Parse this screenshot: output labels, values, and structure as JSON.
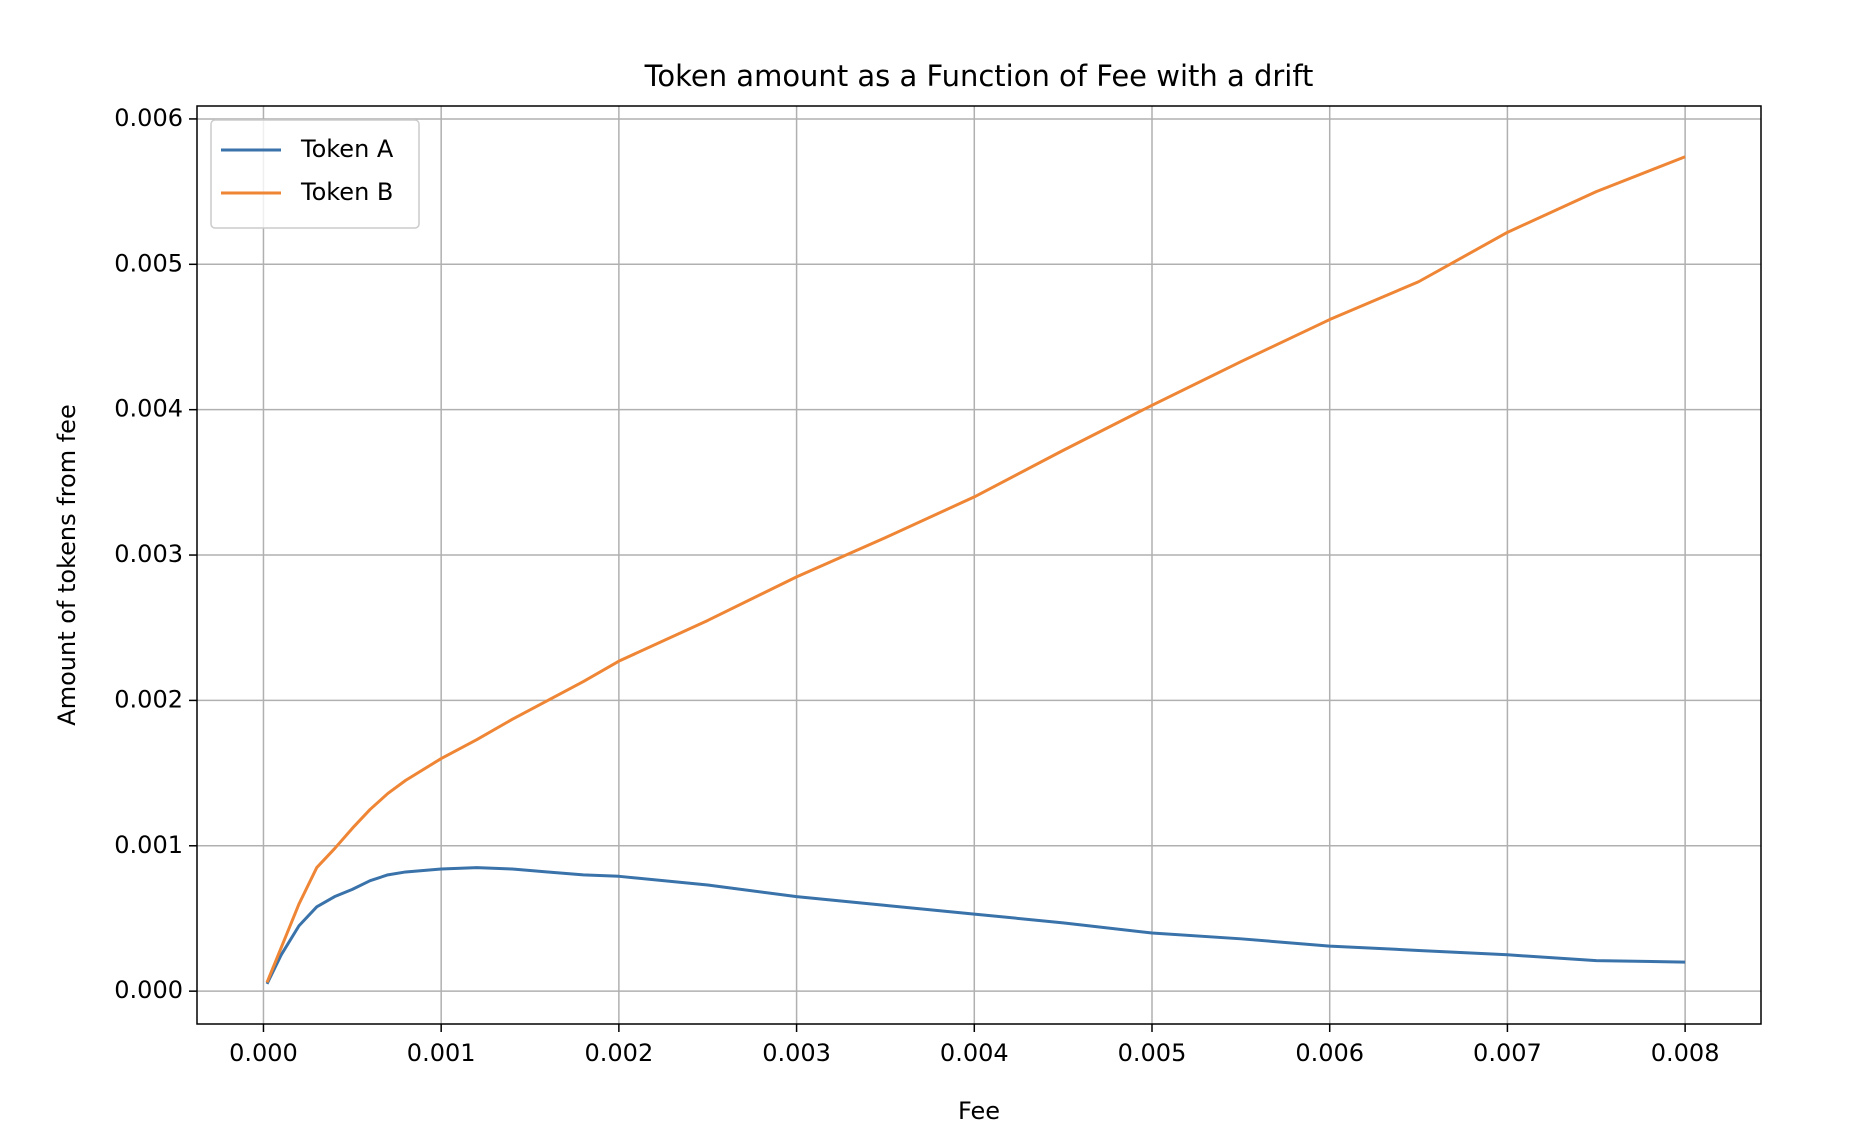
{
  "chart_data": {
    "type": "line",
    "title": "Token amount as a Function of Fee with a drift",
    "x_label": "Fee",
    "y_label": "Amount of tokens from fee",
    "x": [
      2e-05,
      0.0001,
      0.0002,
      0.0003,
      0.0004,
      0.0005,
      0.0006,
      0.0007,
      0.0008,
      0.001,
      0.0012,
      0.0014,
      0.0016,
      0.0018,
      0.002,
      0.0025,
      0.003,
      0.0035,
      0.004,
      0.0045,
      0.005,
      0.0055,
      0.006,
      0.0065,
      0.007,
      0.0075,
      0.008
    ],
    "series": [
      {
        "name": "Token A",
        "color": "#3a72aa",
        "values": [
          5e-05,
          0.00025,
          0.00045,
          0.00058,
          0.00065,
          0.0007,
          0.00076,
          0.0008,
          0.00082,
          0.00084,
          0.00085,
          0.00084,
          0.00082,
          0.0008,
          0.00079,
          0.00073,
          0.00065,
          0.00059,
          0.00053,
          0.00047,
          0.0004,
          0.00036,
          0.00031,
          0.00028,
          0.00025,
          0.00021,
          0.0002
        ]
      },
      {
        "name": "Token B",
        "color": "#ef8636",
        "values": [
          6e-05,
          0.0003,
          0.0006,
          0.00085,
          0.00098,
          0.00112,
          0.00125,
          0.00136,
          0.00145,
          0.0016,
          0.00173,
          0.00187,
          0.002,
          0.00213,
          0.00227,
          0.00255,
          0.00285,
          0.00312,
          0.0034,
          0.00372,
          0.00403,
          0.00433,
          0.00462,
          0.00488,
          0.00522,
          0.0055,
          0.00574
        ]
      }
    ],
    "xlim": [
      -0.000374,
      0.008427
    ],
    "ylim": [
      -0.000226,
      0.006089
    ],
    "xticks": [
      {
        "value": 0,
        "label": "0.000"
      },
      {
        "value": 0.001,
        "label": "0.001"
      },
      {
        "value": 0.002,
        "label": "0.002"
      },
      {
        "value": 0.003,
        "label": "0.003"
      },
      {
        "value": 0.004,
        "label": "0.004"
      },
      {
        "value": 0.005,
        "label": "0.005"
      },
      {
        "value": 0.006,
        "label": "0.006"
      },
      {
        "value": 0.007,
        "label": "0.007"
      },
      {
        "value": 0.008,
        "label": "0.008"
      }
    ],
    "yticks": [
      {
        "value": 0,
        "label": "0.000"
      },
      {
        "value": 0.001,
        "label": "0.001"
      },
      {
        "value": 0.002,
        "label": "0.002"
      },
      {
        "value": 0.003,
        "label": "0.003"
      },
      {
        "value": 0.004,
        "label": "0.004"
      },
      {
        "value": 0.005,
        "label": "0.005"
      },
      {
        "value": 0.006,
        "label": "0.006"
      }
    ],
    "grid": true,
    "legend": "upper-left"
  }
}
